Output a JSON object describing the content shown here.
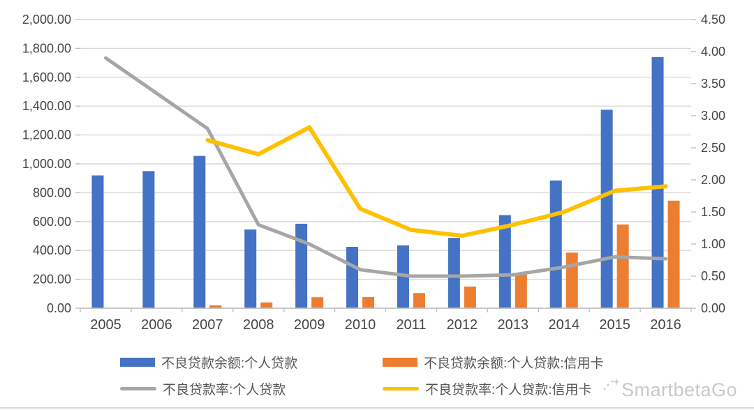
{
  "watermark": {
    "text": "SmartbetaGo",
    "icon": "sparkle-icon",
    "color": "#c9c9c9"
  },
  "chart_data": {
    "type": "combo",
    "title": "",
    "categories": [
      "2005",
      "2006",
      "2007",
      "2008",
      "2009",
      "2010",
      "2011",
      "2012",
      "2013",
      "2014",
      "2015",
      "2016"
    ],
    "series": [
      {
        "name": "不良贷款余额:个人贷款",
        "type": "bar",
        "axis": "left",
        "color": "#4472C4",
        "values": [
          920,
          950,
          1055,
          545,
          585,
          425,
          435,
          487,
          645,
          885,
          1375,
          1740
        ]
      },
      {
        "name": "不良贷款余额:个人贷款:信用卡",
        "type": "bar",
        "axis": "left",
        "color": "#ED7D31",
        "values": [
          null,
          null,
          20,
          40,
          76,
          77,
          105,
          150,
          240,
          385,
          580,
          745
        ]
      },
      {
        "name": "不良贷款率:个人贷款",
        "type": "line",
        "axis": "right",
        "color": "#A6A6A6",
        "stroke_width": 5,
        "values": [
          3.9,
          3.35,
          2.8,
          1.3,
          1.0,
          0.6,
          0.5,
          0.5,
          0.52,
          0.64,
          0.8,
          0.77
        ]
      },
      {
        "name": "不良贷款率:个人贷款:信用卡",
        "type": "line",
        "axis": "right",
        "color": "#FFC000",
        "stroke_width": 6,
        "values": [
          null,
          null,
          2.62,
          2.4,
          2.82,
          1.55,
          1.22,
          1.13,
          1.3,
          1.5,
          1.83,
          1.9
        ]
      }
    ],
    "left_axis": {
      "min": 0,
      "max": 2000,
      "step": 200,
      "labels": [
        "0.00",
        "200.00",
        "400.00",
        "600.00",
        "800.00",
        "1,000.00",
        "1,200.00",
        "1,400.00",
        "1,600.00",
        "1,800.00",
        "2,000.00"
      ]
    },
    "right_axis": {
      "min": 0,
      "max": 4.5,
      "step": 0.5,
      "labels": [
        "0.00",
        "0.50",
        "1.00",
        "1.50",
        "2.00",
        "2.50",
        "3.00",
        "3.50",
        "4.00",
        "4.50"
      ]
    },
    "grid": "horizontal",
    "legend_position": "bottom"
  }
}
